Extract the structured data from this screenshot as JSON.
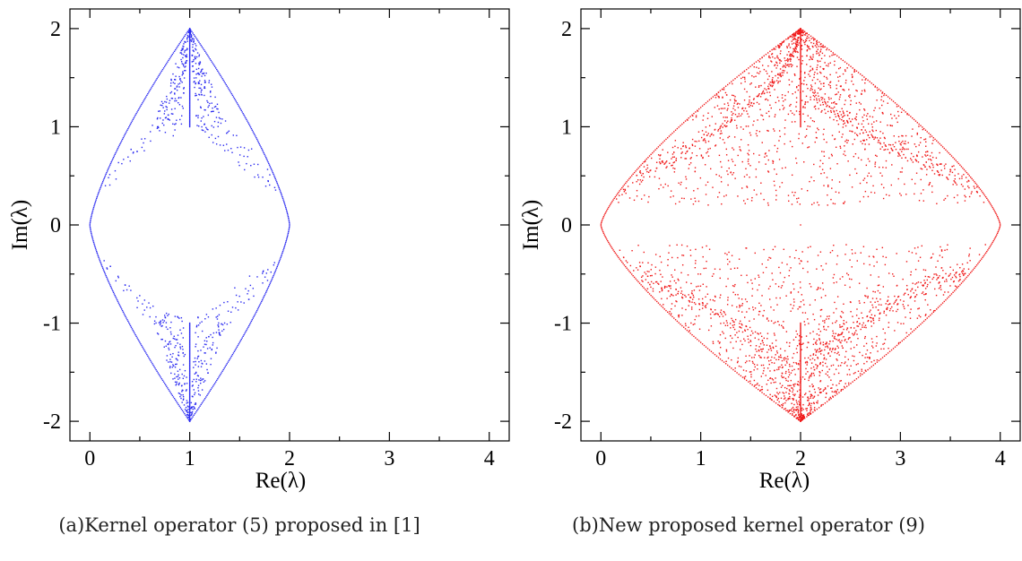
{
  "chart_data": [
    {
      "id": "a",
      "type": "scatter",
      "caption": "(a)Kernel operator (5) proposed in [1]",
      "xlabel": "Re(λ)",
      "ylabel": "Im(λ)",
      "xlim": [
        -0.2,
        4.2
      ],
      "ylim": [
        -2.2,
        2.2
      ],
      "xticks": [
        0,
        1,
        2,
        3,
        4
      ],
      "yticks": [
        -2,
        -1,
        0,
        1,
        2
      ],
      "xtick_labels": [
        "0",
        "1",
        "2",
        "3",
        "4"
      ],
      "ytick_labels": [
        "-2",
        "-1",
        "0",
        "1",
        "2"
      ],
      "grid": false,
      "marker_color": "#2a2af0",
      "series": [
        {
          "shape": "lens",
          "center_re": 1,
          "half_width": 1,
          "im_extent": 2,
          "spike_from_im": 1,
          "spike_to_im": 2
        }
      ]
    },
    {
      "id": "b",
      "type": "scatter",
      "caption": "(b)New proposed kernel operator (9)",
      "xlabel": "Re(λ)",
      "ylabel": "Im(λ)",
      "xlim": [
        -0.2,
        4.2
      ],
      "ylim": [
        -2.2,
        2.2
      ],
      "xticks": [
        0,
        1,
        2,
        3,
        4
      ],
      "yticks": [
        -2,
        -1,
        0,
        1,
        2
      ],
      "xtick_labels": [
        "0",
        "1",
        "2",
        "3",
        "4"
      ],
      "ytick_labels": [
        "-2",
        "-1",
        "0",
        "1",
        "2"
      ],
      "grid": false,
      "marker_color": "#f01818",
      "series": [
        {
          "shape": "lens",
          "center_re": 2,
          "half_width": 2,
          "im_extent": 2,
          "spike_from_im": 1,
          "spike_to_im": 2,
          "inner_fill_to_im": 0.2
        }
      ]
    }
  ]
}
